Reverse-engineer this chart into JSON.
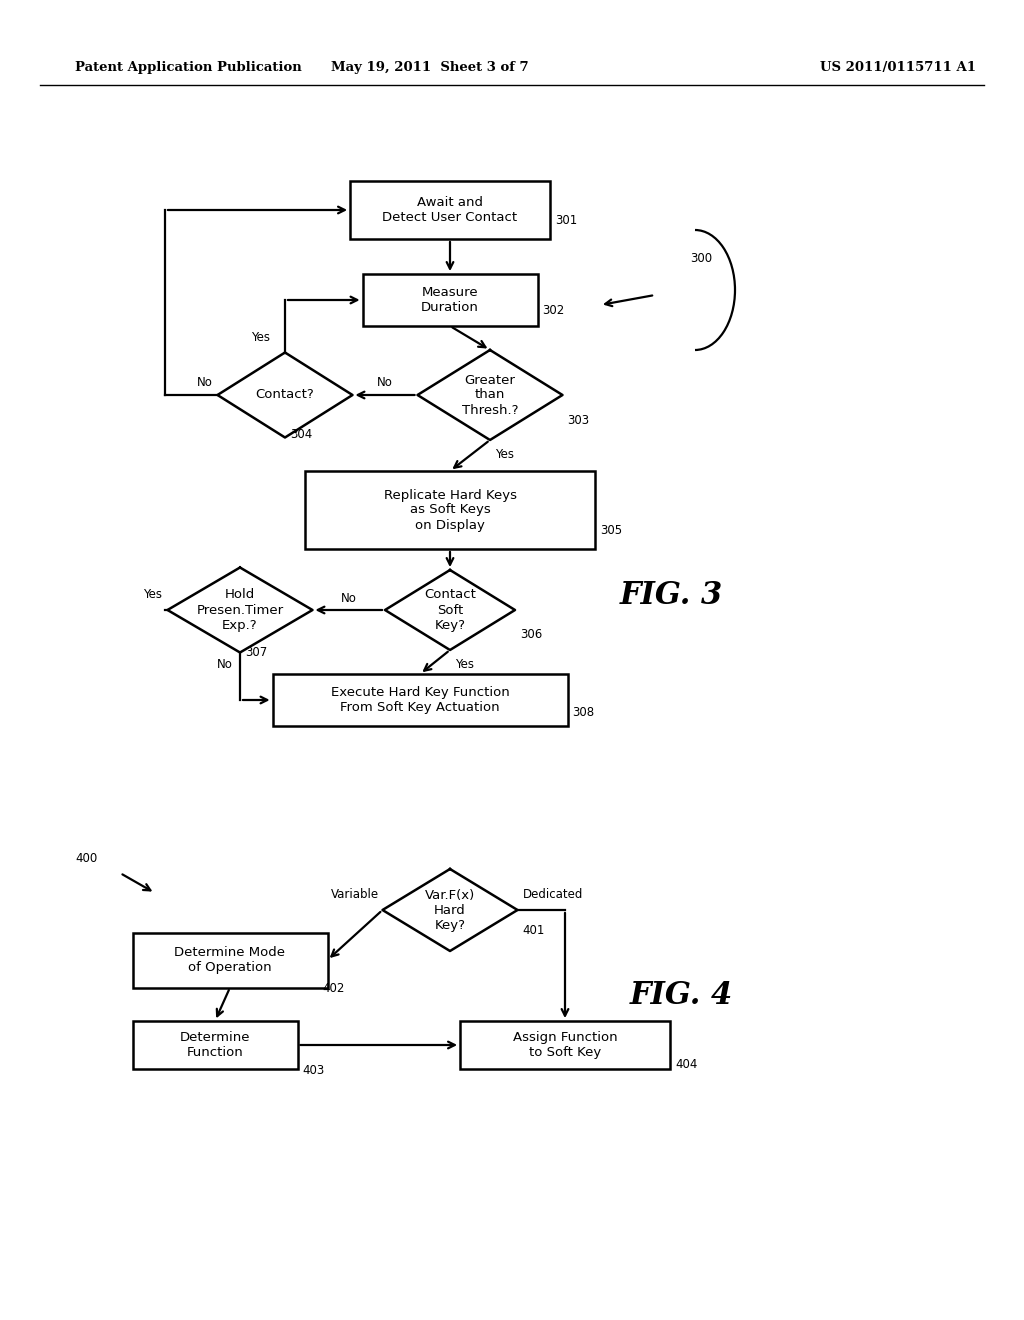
{
  "bg_color": "#ffffff",
  "header_left": "Patent Application Publication",
  "header_center": "May 19, 2011  Sheet 3 of 7",
  "header_right": "US 2011/0115711 A1",
  "fig3_label": "FIG. 3",
  "fig4_label": "FIG. 4"
}
